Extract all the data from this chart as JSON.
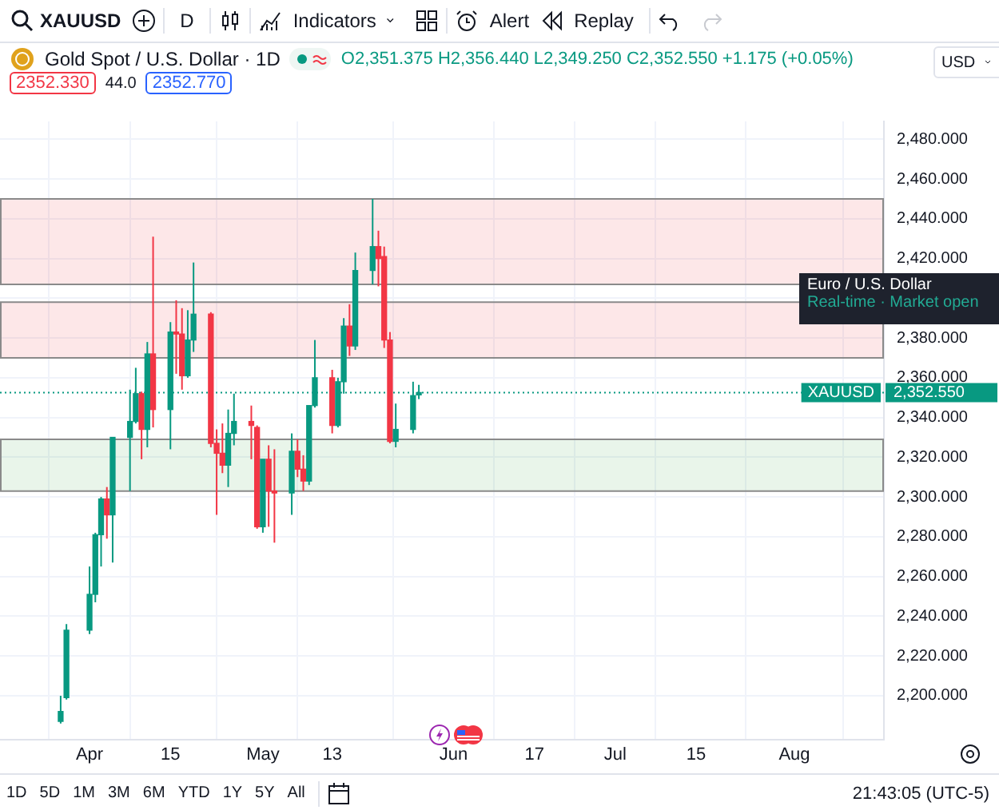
{
  "chart_data": {
    "type": "candlestick",
    "title": "Gold Spot / U.S. Dollar · 1D",
    "subtitle": "O2,351.375 H2,356.440 L2,349.250 C2,352.550 +1.175 (+0.05%)",
    "x": [
      "--03-27",
      "--03-28",
      "--04-01",
      "--04-02",
      "--04-03",
      "--04-04",
      "--04-05",
      "--04-08",
      "--04-09",
      "--04-10",
      "--04-11",
      "--04-12",
      "--04-15",
      "--04-16",
      "--04-17",
      "--04-18",
      "--04-19",
      "--04-22",
      "--04-23",
      "--04-24",
      "--04-25",
      "--04-26",
      "--04-29",
      "--04-30",
      "--05-01",
      "--05-02",
      "--05-03",
      "--05-06",
      "--05-07",
      "--05-08",
      "--05-09",
      "--05-10",
      "--05-13",
      "--05-14",
      "--05-15",
      "--05-16",
      "--05-17",
      "--05-20",
      "--05-21",
      "--05-22",
      "--05-23",
      "--05-24",
      "--05-27",
      "--05-28"
    ],
    "ohlc": [
      [
        2187,
        2200,
        2186,
        2192
      ],
      [
        2199,
        2236,
        2198,
        2233
      ],
      [
        2233,
        2265,
        2231,
        2251
      ],
      [
        2251,
        2282,
        2247,
        2281
      ],
      [
        2281,
        2300,
        2265,
        2299
      ],
      [
        2299,
        2305,
        2279,
        2291
      ],
      [
        2291,
        2330,
        2267,
        2330
      ],
      [
        2330,
        2354,
        2303,
        2338
      ],
      [
        2338,
        2365,
        2337,
        2352
      ],
      [
        2352,
        2353,
        2319,
        2334
      ],
      [
        2334,
        2378,
        2325,
        2372
      ],
      [
        2372,
        2431,
        2335,
        2344
      ],
      [
        2344,
        2388,
        2324,
        2383
      ],
      [
        2383,
        2399,
        2362,
        2382
      ],
      [
        2382,
        2395,
        2354,
        2361
      ],
      [
        2361,
        2394,
        2360,
        2379
      ],
      [
        2379,
        2418,
        2373,
        2392
      ],
      [
        2392,
        2393,
        2325,
        2327
      ],
      [
        2327,
        2334,
        2291,
        2322
      ],
      [
        2322,
        2337,
        2312,
        2316
      ],
      [
        2316,
        2344,
        2305,
        2332
      ],
      [
        2332,
        2352,
        2326,
        2338
      ],
      [
        2338,
        2346,
        2319,
        2336
      ],
      [
        2335,
        2336,
        2284,
        2285
      ],
      [
        2285,
        2319,
        2282,
        2319
      ],
      [
        2319,
        2326,
        2285,
        2303
      ],
      [
        2303,
        2324,
        2277,
        2302
      ],
      [
        2302,
        2332,
        2291,
        2323
      ],
      [
        2323,
        2329,
        2310,
        2314
      ],
      [
        2314,
        2321,
        2303,
        2308
      ],
      [
        2308,
        2346,
        2306,
        2346
      ],
      [
        2346,
        2379,
        2345,
        2360
      ],
      [
        2360,
        2364,
        2332,
        2336
      ],
      [
        2336,
        2360,
        2335,
        2358
      ],
      [
        2358,
        2390,
        2352,
        2386
      ],
      [
        2386,
        2397,
        2371,
        2376
      ],
      [
        2376,
        2423,
        2374,
        2414
      ],
      [
        2414,
        2450,
        2407,
        2426
      ],
      [
        2426,
        2434,
        2406,
        2420
      ],
      [
        2421,
        2426,
        2375,
        2379
      ],
      [
        2379,
        2383,
        2327,
        2328
      ],
      [
        2328,
        2347,
        2325,
        2334
      ],
      [
        2334,
        2358,
        2332,
        2351
      ],
      [
        2351.375,
        2356.44,
        2349.25,
        2352.55
      ]
    ],
    "colors": [
      "#089981",
      "#089981",
      "#089981",
      "#089981",
      "#089981",
      "#f23645",
      "#089981",
      "#089981",
      "#089981",
      "#f23645",
      "#089981",
      "#f23645",
      "#089981",
      "#f23645",
      "#f23645",
      "#089981",
      "#089981",
      "#f23645",
      "#f23645",
      "#f23645",
      "#089981",
      "#089981",
      "#f23645",
      "#f23645",
      "#089981",
      "#f23645",
      "#f23645",
      "#089981",
      "#f23645",
      "#f23645",
      "#089981",
      "#089981",
      "#f23645",
      "#089981",
      "#089981",
      "#f23645",
      "#089981",
      "#089981",
      "#f23645",
      "#f23645",
      "#f23645",
      "#089981",
      "#089981",
      "#089981"
    ],
    "xlim": [
      "--03-25",
      "--08-08"
    ],
    "xticks": [
      {
        "value": "--04-01",
        "label": "Apr"
      },
      {
        "value": "--04-15",
        "label": "15"
      },
      {
        "value": "--05-01",
        "label": "May"
      },
      {
        "value": "--05-13",
        "label": "13"
      },
      {
        "value": "--06-03",
        "label": "Jun"
      },
      {
        "value": "--06-17",
        "label": "17"
      },
      {
        "value": "--07-01",
        "label": "Jul"
      },
      {
        "value": "--07-15",
        "label": "15"
      },
      {
        "value": "--08-01",
        "label": "Aug"
      }
    ],
    "ylim": [
      2178,
      2489
    ],
    "yticks": [
      {
        "value": 2200,
        "label": "2,200.000"
      },
      {
        "value": 2220,
        "label": "2,220.000"
      },
      {
        "value": 2240,
        "label": "2,240.000"
      },
      {
        "value": 2260,
        "label": "2,260.000"
      },
      {
        "value": 2280,
        "label": "2,280.000"
      },
      {
        "value": 2300,
        "label": "2,300.000"
      },
      {
        "value": 2320,
        "label": "2,320.000"
      },
      {
        "value": 2340,
        "label": "2,340.000"
      },
      {
        "value": 2360,
        "label": "2,360.000"
      },
      {
        "value": 2380,
        "label": "2,380.000"
      },
      {
        "value": 2400,
        "label": null
      },
      {
        "value": 2420,
        "label": "2,420.000"
      },
      {
        "value": 2440,
        "label": "2,440.000"
      },
      {
        "value": 2460,
        "label": "2,460.000"
      },
      {
        "value": 2480,
        "label": "2,480.000"
      }
    ],
    "grid": true,
    "bands": [
      {
        "axis": "y",
        "from": 2407,
        "to": 2450,
        "color": "#f23645"
      },
      {
        "axis": "y",
        "from": 2370,
        "to": 2398,
        "color": "#f23645"
      },
      {
        "axis": "y",
        "from": 2303,
        "to": 2329,
        "color": "#4caf50"
      }
    ],
    "ref_lines": [
      {
        "axis": "y",
        "value": 2352.55,
        "label": "XAUUSD",
        "color": "#089981",
        "line_style": "dotted"
      }
    ],
    "annotations": [
      "XAUUSD",
      "D",
      "Indicators",
      "Alert",
      "Replay",
      "2352.330",
      "44.0",
      "2352.770",
      "USD",
      "Euro / U.S. Dollar",
      "Real-time · Market open",
      "1D",
      "5D",
      "1M",
      "3M",
      "6M",
      "YTD",
      "1Y",
      "5Y",
      "All",
      "21:43:05 (UTC-5)",
      "2,352.550"
    ]
  }
}
